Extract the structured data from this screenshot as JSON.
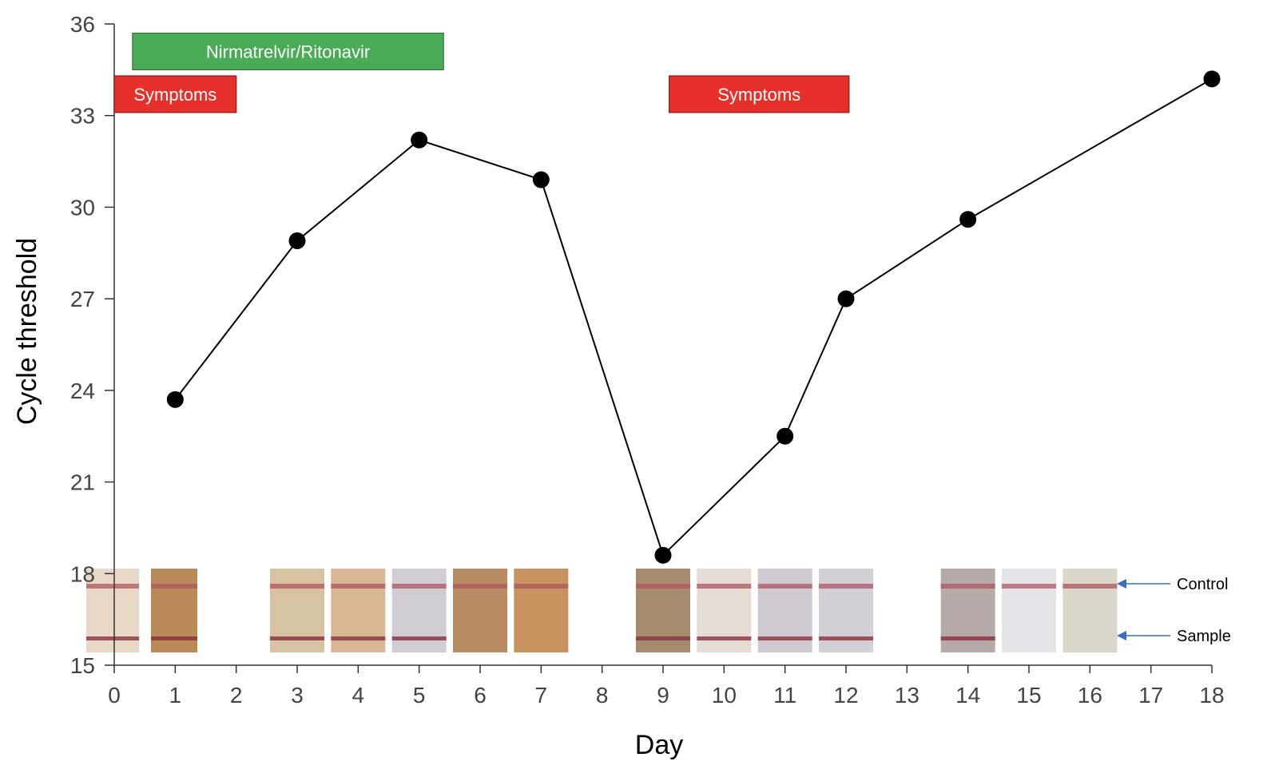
{
  "chart_data": {
    "type": "line",
    "title": "",
    "xlabel": "Day",
    "ylabel": "Cycle threshold",
    "xlim": [
      0,
      18
    ],
    "ylim": [
      15,
      36
    ],
    "x_ticks": [
      "0",
      "1",
      "2",
      "3",
      "4",
      "5",
      "6",
      "7",
      "8",
      "9",
      "10",
      "11",
      "12",
      "13",
      "14",
      "15",
      "16",
      "17",
      "18"
    ],
    "y_ticks": [
      "15",
      "18",
      "21",
      "24",
      "27",
      "30",
      "33",
      "36"
    ],
    "grid": false,
    "series": [
      {
        "name": "Cycle threshold",
        "x": [
          1,
          3,
          5,
          7,
          9,
          11,
          12,
          14,
          18
        ],
        "y": [
          23.7,
          28.9,
          32.2,
          30.9,
          18.6,
          22.5,
          27.0,
          29.6,
          34.2
        ]
      }
    ],
    "intervals": [
      {
        "label": "Nirmatrelvir/Ritonavir",
        "x_start": 0.3,
        "x_end": 5.4,
        "y_top": 35.7,
        "y_bottom": 34.5,
        "color": "#4aab57",
        "border": "#2f6f37"
      },
      {
        "label": "Symptoms",
        "x_start": 0.0,
        "x_end": 2.0,
        "y_top": 34.3,
        "y_bottom": 33.1,
        "color": "#e8302a",
        "border": "#8a1a16"
      },
      {
        "label": "Symptoms",
        "x_start": 9.1,
        "x_end": 12.05,
        "y_top": 34.3,
        "y_bottom": 33.1,
        "color": "#e8302a",
        "border": "#8a1a16"
      }
    ],
    "test_strips": {
      "days": [
        0,
        1,
        3,
        4,
        5,
        6,
        7,
        9,
        10,
        11,
        12,
        14,
        15,
        16
      ],
      "sample_line_visible": [
        true,
        true,
        true,
        true,
        true,
        false,
        false,
        true,
        true,
        true,
        true,
        true,
        false,
        false
      ],
      "bands": [
        "Control",
        "Sample"
      ]
    },
    "colors": {
      "line": "#000000",
      "marker": "#000000",
      "axis": "#333333",
      "arrow": "#3b6fc4"
    }
  }
}
